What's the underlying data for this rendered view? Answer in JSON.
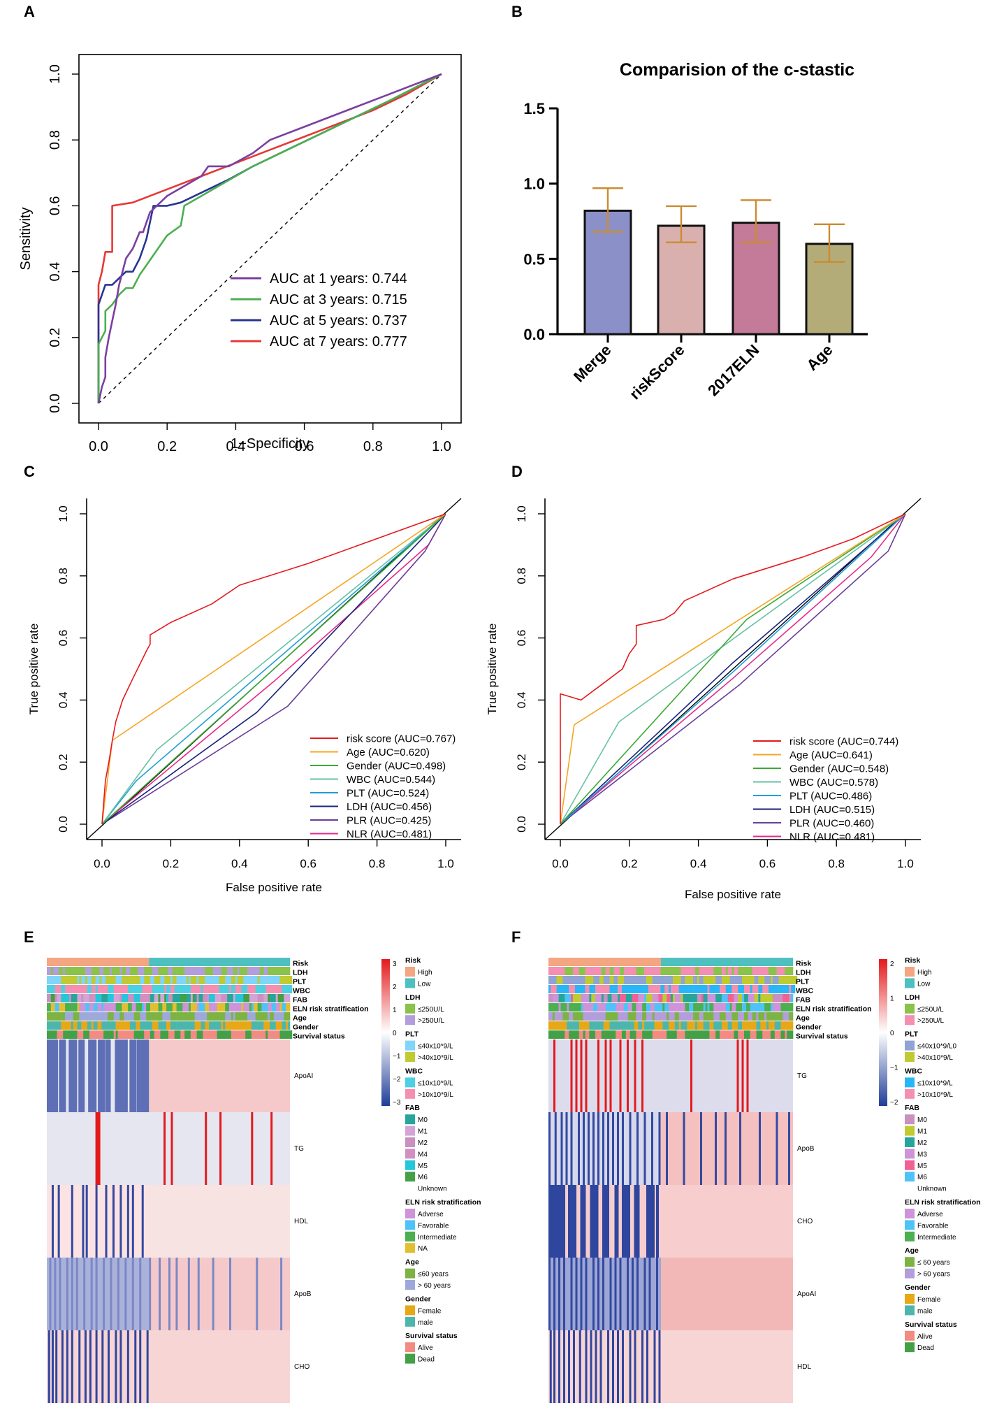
{
  "panels": {
    "A": "A",
    "B": "B",
    "C": "C",
    "D": "D",
    "E": "E",
    "F": "F"
  },
  "colors": {
    "red": "#e41a1c",
    "orange": "#f5a623",
    "green": "#3aaa35",
    "teal": "#66c2a5",
    "blue": "#1f78b4",
    "navy": "#1a237e",
    "purple": "#6a3d9a",
    "magenta": "#e7298a",
    "hm_blue": "#3d55a8",
    "hm_red": "#e31a1c"
  },
  "chart_data": [
    {
      "id": "A",
      "type": "line",
      "xlabel": "1−Specificity",
      "ylabel": "Sensitivity",
      "xlim": [
        0,
        1
      ],
      "ylim": [
        0,
        1
      ],
      "ticks": [
        "0.0",
        "0.2",
        "0.4",
        "0.6",
        "0.8",
        "1.0"
      ],
      "series": [
        {
          "name": "AUC at 1 years: 0.744",
          "color": "#7b3fa0",
          "x": [
            0,
            0.01,
            0.02,
            0.02,
            0.03,
            0.04,
            0.05,
            0.06,
            0.07,
            0.08,
            0.1,
            0.12,
            0.13,
            0.15,
            0.2,
            0.25,
            0.3,
            0.32,
            0.38,
            0.45,
            0.5,
            0.6,
            0.7,
            0.8,
            0.9,
            1
          ],
          "y": [
            0,
            0.05,
            0.08,
            0.14,
            0.2,
            0.25,
            0.3,
            0.36,
            0.4,
            0.44,
            0.47,
            0.52,
            0.52,
            0.58,
            0.63,
            0.66,
            0.69,
            0.72,
            0.72,
            0.76,
            0.8,
            0.84,
            0.88,
            0.92,
            0.96,
            1
          ]
        },
        {
          "name": "AUC at 3 years: 0.715",
          "color": "#4caf50",
          "x": [
            0,
            0,
            0.02,
            0.02,
            0.04,
            0.06,
            0.08,
            0.1,
            0.12,
            0.16,
            0.2,
            0.24,
            0.25,
            0.35,
            0.45,
            0.55,
            0.65,
            0.75,
            0.85,
            1
          ],
          "y": [
            0,
            0.18,
            0.22,
            0.28,
            0.3,
            0.33,
            0.35,
            0.35,
            0.39,
            0.45,
            0.51,
            0.54,
            0.6,
            0.66,
            0.72,
            0.77,
            0.82,
            0.87,
            0.92,
            1
          ]
        },
        {
          "name": "AUC at 5 years: 0.737",
          "color": "#283593",
          "x": [
            0,
            0,
            0.02,
            0.04,
            0.06,
            0.08,
            0.1,
            0.12,
            0.14,
            0.16,
            0.2,
            0.24,
            0.3,
            0.38,
            0.45,
            0.55,
            0.65,
            0.75,
            0.85,
            1
          ],
          "y": [
            0,
            0.3,
            0.36,
            0.36,
            0.38,
            0.4,
            0.4,
            0.44,
            0.5,
            0.6,
            0.6,
            0.61,
            0.64,
            0.68,
            0.72,
            0.77,
            0.82,
            0.87,
            0.92,
            1
          ]
        },
        {
          "name": "AUC at 7 years: 0.777",
          "color": "#e53935",
          "x": [
            0,
            0,
            0.01,
            0.02,
            0.04,
            0.04,
            0.1,
            0.2,
            0.3,
            0.4,
            0.5,
            0.6,
            0.7,
            0.8,
            0.9,
            1
          ],
          "y": [
            0,
            0.36,
            0.4,
            0.46,
            0.46,
            0.6,
            0.61,
            0.65,
            0.69,
            0.73,
            0.77,
            0.81,
            0.85,
            0.89,
            0.94,
            1
          ]
        }
      ]
    },
    {
      "id": "B",
      "type": "bar",
      "title": "Comparision of the c-stastic",
      "categories": [
        "Merge",
        "riskScore",
        "2017ELN",
        "Age"
      ],
      "values": [
        0.82,
        0.72,
        0.74,
        0.6
      ],
      "errors_low": [
        0.68,
        0.61,
        0.61,
        0.48
      ],
      "errors_high": [
        0.97,
        0.85,
        0.89,
        0.73
      ],
      "bar_colors": [
        "#8c90c8",
        "#d9b0ae",
        "#c47b9a",
        "#b3ab78"
      ],
      "error_color": "#cc8b2e",
      "ylim": [
        0,
        1.5
      ],
      "yticks": [
        "0.0",
        "0.5",
        "1.0",
        "1.5"
      ]
    },
    {
      "id": "C",
      "type": "line",
      "xlabel": "False positive rate",
      "ylabel": "True positive rate",
      "xlim": [
        0,
        1
      ],
      "ylim": [
        0,
        1
      ],
      "ticks": [
        "0.0",
        "0.2",
        "0.4",
        "0.6",
        "0.8",
        "1.0"
      ],
      "series": [
        {
          "name": "risk score (AUC=0.767)",
          "color": "#e41a1c",
          "x": [
            0,
            0.01,
            0.02,
            0.03,
            0.04,
            0.06,
            0.09,
            0.13,
            0.14,
            0.14,
            0.2,
            0.32,
            0.4,
            0.6,
            0.8,
            1
          ],
          "y": [
            0,
            0.14,
            0.2,
            0.27,
            0.33,
            0.4,
            0.47,
            0.56,
            0.58,
            0.61,
            0.65,
            0.71,
            0.77,
            0.84,
            0.92,
            1
          ]
        },
        {
          "name": "Age (AUC=0.620)",
          "color": "#f5a623",
          "x": [
            0,
            0.03,
            1
          ],
          "y": [
            0,
            0.27,
            1
          ]
        },
        {
          "name": "Gender (AUC=0.498)",
          "color": "#3aaa35",
          "x": [
            0,
            1
          ],
          "y": [
            0,
            1
          ]
        },
        {
          "name": "WBC (AUC=0.544)",
          "color": "#66c2a5",
          "x": [
            0,
            0.16,
            1
          ],
          "y": [
            0,
            0.24,
            1
          ]
        },
        {
          "name": "PLT (AUC=0.524)",
          "color": "#1f9ed8",
          "x": [
            0,
            0.1,
            1
          ],
          "y": [
            0,
            0.14,
            1
          ]
        },
        {
          "name": "LDH (AUC=0.456)",
          "color": "#1a237e",
          "x": [
            0,
            0.45,
            1
          ],
          "y": [
            0,
            0.36,
            1
          ]
        },
        {
          "name": "PLR (AUC=0.425)",
          "color": "#6a3d9a",
          "x": [
            0,
            0.54,
            0.94,
            1
          ],
          "y": [
            0,
            0.38,
            0.88,
            1
          ]
        },
        {
          "name": "NLR (AUC=0.481)",
          "color": "#e7298a",
          "x": [
            0,
            0.5,
            0.95,
            1
          ],
          "y": [
            0,
            0.46,
            0.9,
            1
          ]
        }
      ]
    },
    {
      "id": "D",
      "type": "line",
      "xlabel": "False positive rate",
      "ylabel": "True positive rate",
      "xlim": [
        0,
        1
      ],
      "ylim": [
        0,
        1
      ],
      "ticks": [
        "0.0",
        "0.2",
        "0.4",
        "0.6",
        "0.8",
        "1.0"
      ],
      "series": [
        {
          "name": "risk score (AUC=0.744)",
          "color": "#e41a1c",
          "x": [
            0,
            0,
            0.06,
            0.12,
            0.18,
            0.2,
            0.22,
            0.22,
            0.3,
            0.33,
            0.36,
            0.5,
            0.7,
            0.85,
            1
          ],
          "y": [
            0,
            0.42,
            0.4,
            0.45,
            0.5,
            0.55,
            0.58,
            0.64,
            0.66,
            0.68,
            0.72,
            0.79,
            0.86,
            0.92,
            1
          ]
        },
        {
          "name": "Age (AUC=0.641)",
          "color": "#f5a623",
          "x": [
            0,
            0.04,
            1
          ],
          "y": [
            0,
            0.32,
            1
          ]
        },
        {
          "name": "Gender (AUC=0.548)",
          "color": "#3aaa35",
          "x": [
            0,
            0.54,
            1
          ],
          "y": [
            0,
            0.66,
            1
          ]
        },
        {
          "name": "WBC (AUC=0.578)",
          "color": "#66c2a5",
          "x": [
            0,
            0.17,
            1
          ],
          "y": [
            0,
            0.33,
            1
          ]
        },
        {
          "name": "PLT (AUC=0.486)",
          "color": "#1f9ed8",
          "x": [
            0,
            0.5,
            1
          ],
          "y": [
            0,
            0.49,
            1
          ]
        },
        {
          "name": "LDH (AUC=0.515)",
          "color": "#1a237e",
          "x": [
            0,
            0.5,
            1
          ],
          "y": [
            0,
            0.52,
            1
          ]
        },
        {
          "name": "PLR (AUC=0.460)",
          "color": "#6a3d9a",
          "x": [
            0,
            0.52,
            0.95,
            1
          ],
          "y": [
            0,
            0.45,
            0.88,
            1
          ]
        },
        {
          "name": "NLR (AUC=0.481)",
          "color": "#e7298a",
          "x": [
            0,
            0.5,
            0.9,
            1
          ],
          "y": [
            0,
            0.47,
            0.86,
            1
          ]
        }
      ]
    },
    {
      "id": "E",
      "type": "heatmap",
      "annotations": [
        "Risk",
        "LDH",
        "PLT",
        "WBC",
        "FAB",
        "ELN risk stratification",
        "Age",
        "Gender",
        "Survival status"
      ],
      "rows": [
        "ApoAI",
        "TG",
        "HDL",
        "ApoB",
        "CHO"
      ],
      "scale_ticks": [
        "3",
        "2",
        "1",
        "0",
        "−1",
        "−2",
        "−3"
      ],
      "legend": [
        {
          "title": "Risk",
          "items": [
            {
              "label": "High",
              "color": "#f4a582"
            },
            {
              "label": "Low",
              "color": "#4fc0c0"
            }
          ]
        },
        {
          "title": "LDH",
          "items": [
            {
              "label": "≤250U/L",
              "color": "#8bc34a"
            },
            {
              "label": ">250U/L",
              "color": "#b39ddb"
            }
          ]
        },
        {
          "title": "PLT",
          "items": [
            {
              "label": "≤40x10*9/L",
              "color": "#81d4fa"
            },
            {
              "label": ">40x10*9/L",
              "color": "#c0ca33"
            }
          ]
        },
        {
          "title": "WBC",
          "items": [
            {
              "label": "≤10x10*9/L",
              "color": "#4dd0e1"
            },
            {
              "label": ">10x10*9/L",
              "color": "#f48fb1"
            }
          ]
        },
        {
          "title": "FAB",
          "items": [
            {
              "label": "M0",
              "color": "#26a69a"
            },
            {
              "label": "M1",
              "color": "#d4a5d4"
            },
            {
              "label": "M2",
              "color": "#c990c0"
            },
            {
              "label": "M4",
              "color": "#d48fc2"
            },
            {
              "label": "M5",
              "color": "#26c6da"
            },
            {
              "label": "M6",
              "color": "#43a047"
            },
            {
              "label": "Unknown",
              "color": "none"
            }
          ]
        },
        {
          "title": "ELN risk stratification",
          "items": [
            {
              "label": "Adverse",
              "color": "#ce93d8"
            },
            {
              "label": "Favorable",
              "color": "#4fc3f7"
            },
            {
              "label": "Intermediate",
              "color": "#4caf50"
            },
            {
              "label": "NA",
              "color": "#e0c030"
            }
          ]
        },
        {
          "title": "Age",
          "items": [
            {
              "label": "≤60 years",
              "color": "#7cb342"
            },
            {
              "label": "> 60 years",
              "color": "#9fa8da"
            }
          ]
        },
        {
          "title": "Gender",
          "items": [
            {
              "label": "Female",
              "color": "#e6a817"
            },
            {
              "label": "male",
              "color": "#4db6ac"
            }
          ]
        },
        {
          "title": "Survival status",
          "items": [
            {
              "label": "Alive",
              "color": "#f28b82"
            },
            {
              "label": "Dead",
              "color": "#43a047"
            }
          ]
        }
      ]
    },
    {
      "id": "F",
      "type": "heatmap",
      "annotations": [
        "Risk",
        "LDH",
        "PLT",
        "WBC",
        "FAB",
        "ELN risk stratification",
        "Age",
        "Gender",
        "Survival status"
      ],
      "rows": [
        "TG",
        "ApoB",
        "CHO",
        "ApoAI",
        "HDL"
      ],
      "scale_ticks": [
        "2",
        "1",
        "0",
        "−1",
        "−2"
      ],
      "legend": [
        {
          "title": "Risk",
          "items": [
            {
              "label": "High",
              "color": "#f4a582"
            },
            {
              "label": "Low",
              "color": "#4fc0c0"
            }
          ]
        },
        {
          "title": "LDH",
          "items": [
            {
              "label": "≤250U/L",
              "color": "#8bc34a"
            },
            {
              "label": ">250U/L",
              "color": "#f48fb1"
            }
          ]
        },
        {
          "title": "PLT",
          "items": [
            {
              "label": "≤40x10*9/L0",
              "color": "#90a4d4"
            },
            {
              "label": ">40x10*9/L",
              "color": "#c0ca33"
            }
          ]
        },
        {
          "title": "WBC",
          "items": [
            {
              "label": "≤10x10*9/L",
              "color": "#29b6f6"
            },
            {
              "label": ">10x10*9/L",
              "color": "#f48fb1"
            }
          ]
        },
        {
          "title": "FAB",
          "items": [
            {
              "label": "M0",
              "color": "#c990c0"
            },
            {
              "label": "M1",
              "color": "#c0ca33"
            },
            {
              "label": "M2",
              "color": "#26a69a"
            },
            {
              "label": "M3",
              "color": "#ce93d8"
            },
            {
              "label": "M5",
              "color": "#f06292"
            },
            {
              "label": "M6",
              "color": "#4fc3f7"
            },
            {
              "label": "Unknown",
              "color": "none"
            }
          ]
        },
        {
          "title": "ELN risk stratification",
          "items": [
            {
              "label": "Adverse",
              "color": "#ce93d8"
            },
            {
              "label": "Favorable",
              "color": "#4fc3f7"
            },
            {
              "label": "Intermediate",
              "color": "#4caf50"
            }
          ]
        },
        {
          "title": "Age",
          "items": [
            {
              "label": "≤ 60 years",
              "color": "#7cb342"
            },
            {
              "label": "> 60 years",
              "color": "#b39ddb"
            }
          ]
        },
        {
          "title": "Gender",
          "items": [
            {
              "label": "Female",
              "color": "#e6a817"
            },
            {
              "label": "male",
              "color": "#4db6ac"
            }
          ]
        },
        {
          "title": "Survival status",
          "items": [
            {
              "label": "Alive",
              "color": "#f28b82"
            },
            {
              "label": "Dead",
              "color": "#43a047"
            }
          ]
        }
      ]
    }
  ]
}
